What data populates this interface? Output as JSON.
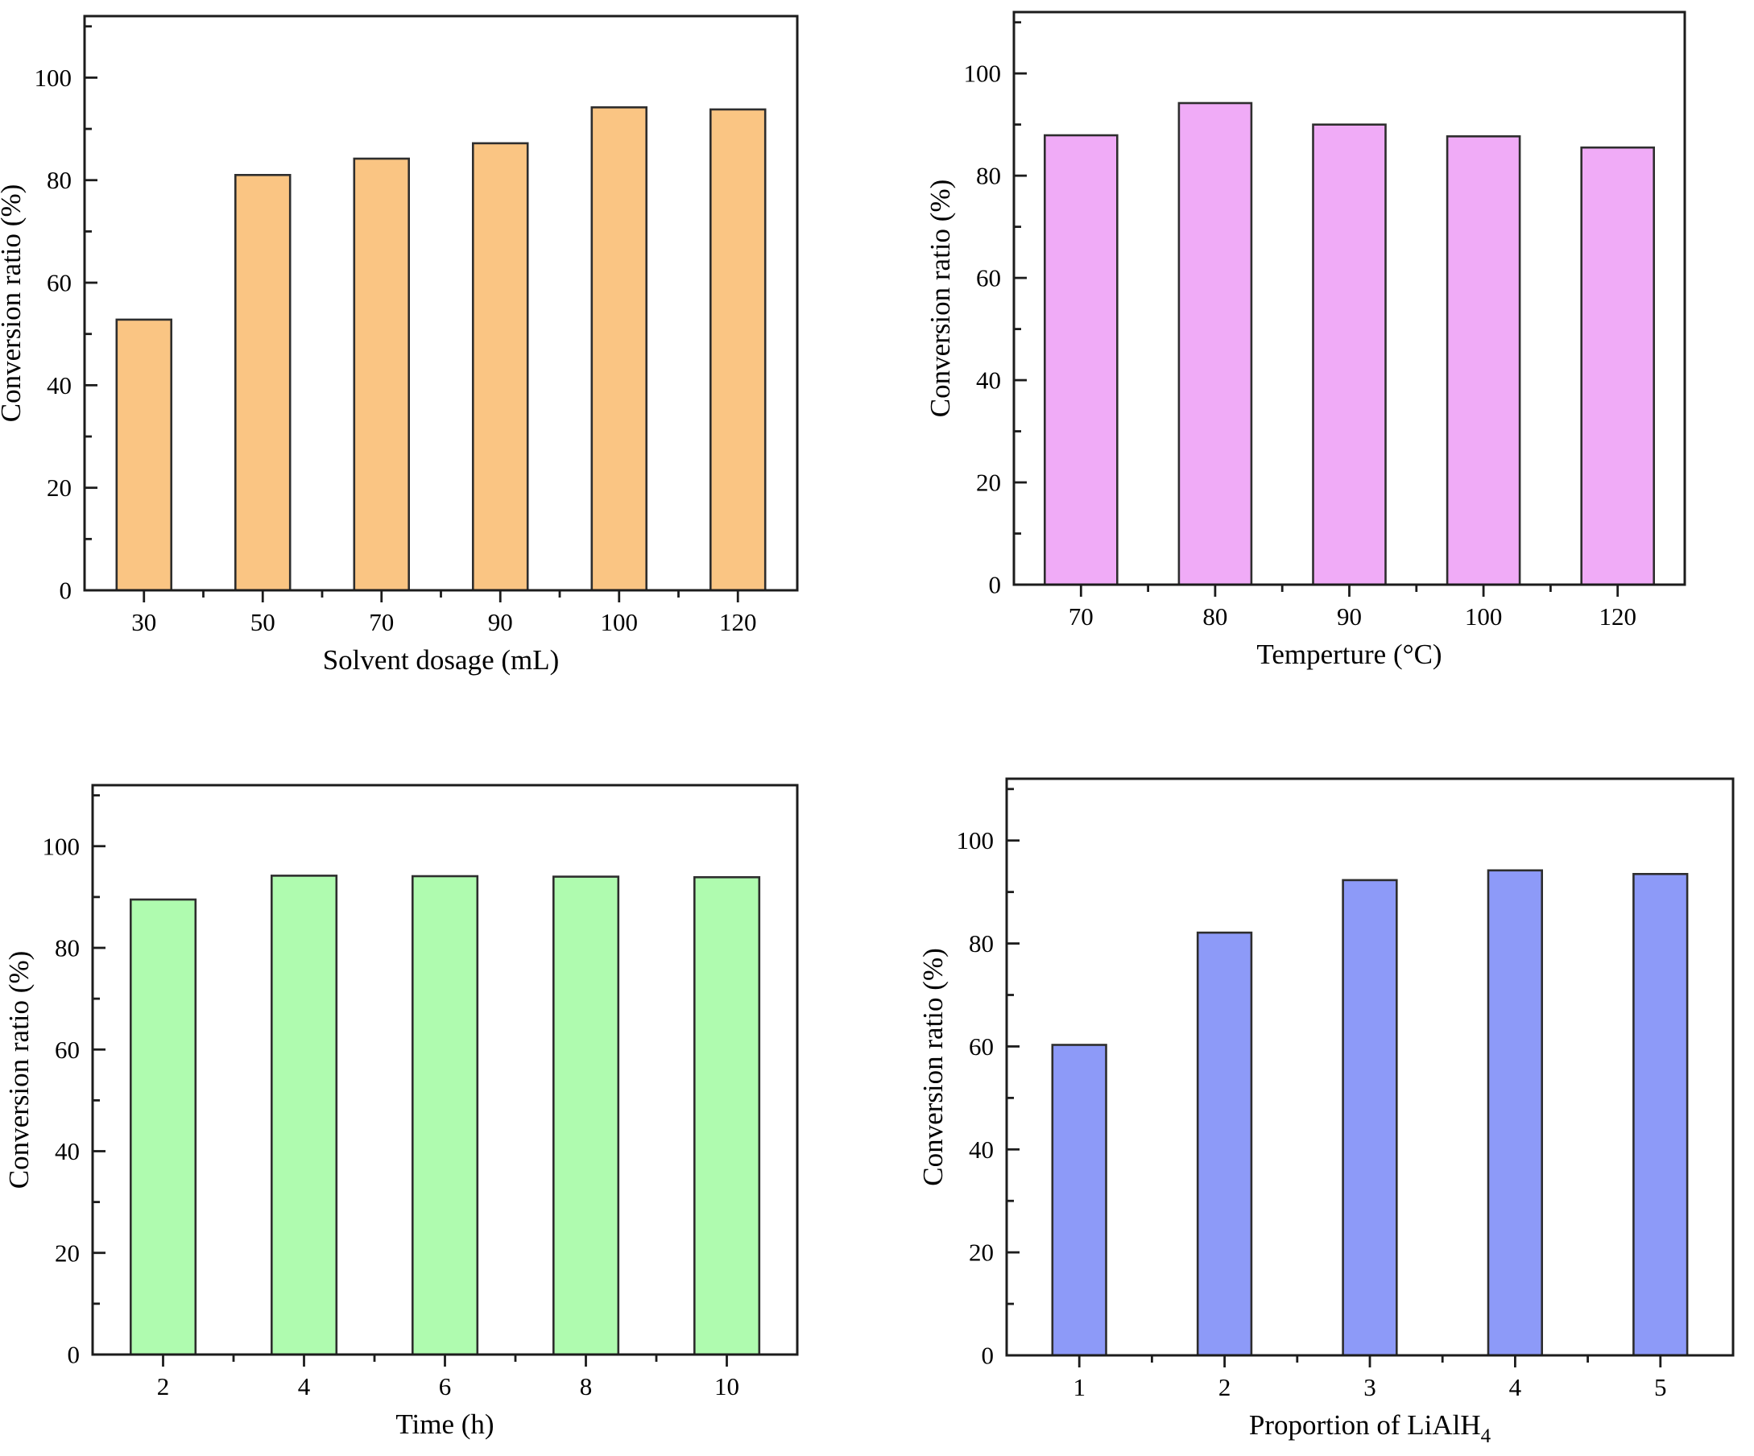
{
  "figure": {
    "background": "#ffffff",
    "text_color": "#000000",
    "axis_color": "#1c1c1c",
    "tick_font_size": 31,
    "label_font_size": 35
  },
  "chart_data": [
    {
      "id": "solvent-dosage",
      "type": "bar",
      "title": "",
      "categories": [
        "30",
        "50",
        "70",
        "90",
        "100",
        "120"
      ],
      "values": [
        52.8,
        81.0,
        84.2,
        87.2,
        94.2,
        93.8
      ],
      "xlabel": "Solvent dosage (mL)",
      "ylabel": "Conversion ratio (%)",
      "ylim": [
        0,
        112
      ],
      "yticks": [
        0,
        20,
        40,
        60,
        80,
        100
      ],
      "minor_tick_step": 10,
      "grid": false,
      "legend": null,
      "bar_color": "#FAC583",
      "bar_border_color": "#2e2e2e"
    },
    {
      "id": "temperature",
      "type": "bar",
      "title": "",
      "categories": [
        "70",
        "80",
        "90",
        "100",
        "120"
      ],
      "values": [
        87.9,
        94.2,
        90.0,
        87.7,
        85.5
      ],
      "xlabel": "Temperture (°C)",
      "ylabel": "Conversion ratio (%)",
      "ylim": [
        0,
        112
      ],
      "yticks": [
        0,
        20,
        40,
        60,
        80,
        100
      ],
      "minor_tick_step": 10,
      "grid": false,
      "legend": null,
      "bar_color": "#F0ABF7",
      "bar_border_color": "#2e2e2e"
    },
    {
      "id": "time",
      "type": "bar",
      "title": "",
      "categories": [
        "2",
        "4",
        "6",
        "8",
        "10"
      ],
      "values": [
        89.5,
        94.2,
        94.1,
        94.0,
        93.9
      ],
      "xlabel": "Time (h)",
      "ylabel": "Conversion ratio (%)",
      "ylim": [
        0,
        112
      ],
      "yticks": [
        0,
        20,
        40,
        60,
        80,
        100
      ],
      "minor_tick_step": 10,
      "grid": false,
      "legend": null,
      "bar_color": "#AFFBAF",
      "bar_border_color": "#2e2e2e"
    },
    {
      "id": "lialh4-proportion",
      "type": "bar",
      "title": "",
      "categories": [
        "1",
        "2",
        "3",
        "4",
        "5"
      ],
      "values": [
        60.3,
        82.1,
        92.3,
        94.2,
        93.5
      ],
      "xlabel": "Proportion of LiAlH",
      "xlabel_sub": "4",
      "ylabel": "Conversion ratio (%)",
      "ylim": [
        0,
        112
      ],
      "yticks": [
        0,
        20,
        40,
        60,
        80,
        100
      ],
      "minor_tick_step": 10,
      "grid": false,
      "legend": null,
      "bar_color": "#8D9AF8",
      "bar_border_color": "#2e2e2e"
    }
  ]
}
